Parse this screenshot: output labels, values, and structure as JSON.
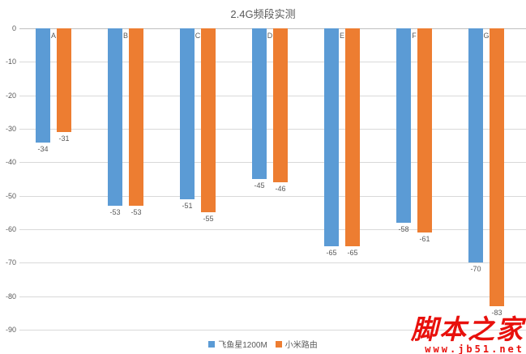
{
  "chart_data": {
    "type": "bar",
    "orientation": "vertical",
    "title": "2.4G频段实测",
    "categories": [
      "A",
      "B",
      "C",
      "D",
      "E",
      "F",
      "G"
    ],
    "series": [
      {
        "name": "飞鱼星1200M",
        "color": "#5B9BD5",
        "values": [
          -34,
          -53,
          -51,
          -45,
          -65,
          -58,
          -70
        ]
      },
      {
        "name": "小米路由",
        "color": "#ED7D31",
        "values": [
          -31,
          -53,
          -55,
          -46,
          -65,
          -61,
          -83
        ]
      }
    ],
    "ylim": [
      -90,
      0
    ],
    "yticks": [
      0,
      -10,
      -20,
      -30,
      -40,
      -50,
      -60,
      -70,
      -80,
      -90
    ],
    "grid": true,
    "legend_position": "bottom",
    "data_labels": true
  },
  "watermark": {
    "line1": "脚本之家",
    "line2": "www.jb51.net",
    "color": "#e8100c"
  }
}
